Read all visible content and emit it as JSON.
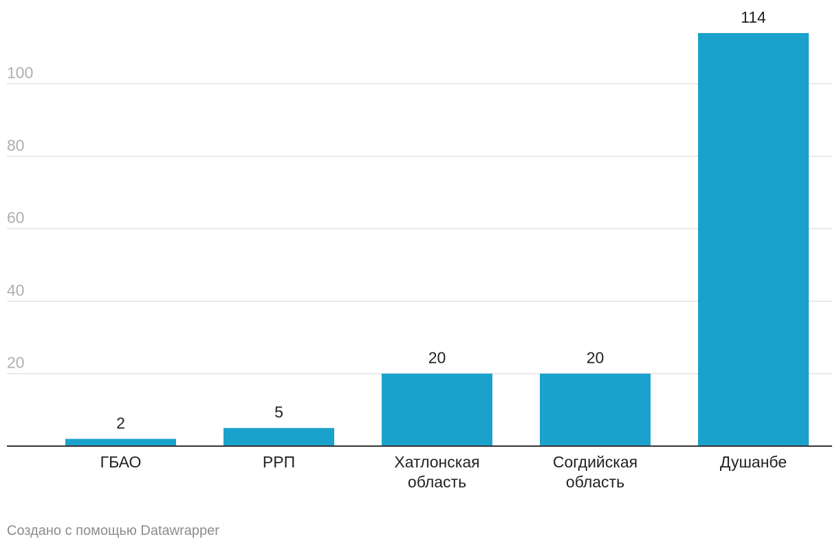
{
  "chart_data": {
    "type": "bar",
    "categories": [
      [
        "ГБАО"
      ],
      [
        "РРП"
      ],
      [
        "Хатлонская",
        "область"
      ],
      [
        "Согдийская",
        "область"
      ],
      [
        "Душанбе"
      ]
    ],
    "values": [
      2,
      5,
      20,
      20,
      114
    ],
    "data_labels": [
      "2",
      "5",
      "20",
      "20",
      "114"
    ],
    "y_ticks": [
      20,
      40,
      60,
      80,
      100
    ],
    "y_tick_labels": [
      "20",
      "40",
      "60",
      "80",
      "100"
    ],
    "ylim": [
      0,
      114
    ],
    "bar_color": "#1aa1cc",
    "grid": true,
    "title": "",
    "xlabel": "",
    "ylabel": ""
  },
  "footer": {
    "credit": "Создано с помощью Datawrapper"
  }
}
